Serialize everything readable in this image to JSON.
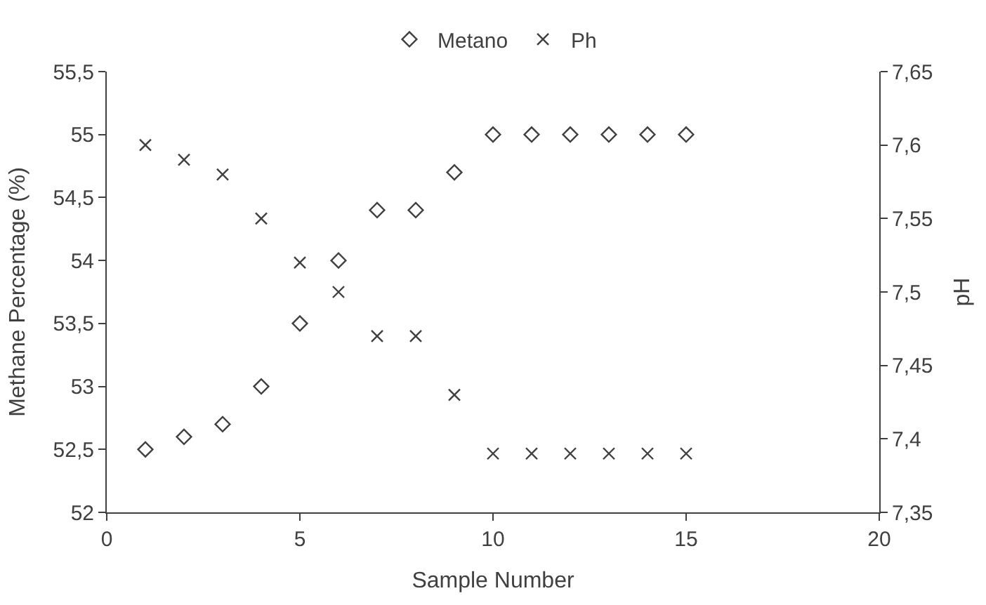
{
  "chart_data": {
    "type": "scatter",
    "xlabel": "Sample Number",
    "ylabel": "Methane Percentage (%)",
    "y2label": "pH",
    "x": [
      1,
      2,
      3,
      4,
      5,
      6,
      7,
      8,
      9,
      10,
      11,
      12,
      13,
      14,
      15
    ],
    "series": [
      {
        "name": "Metano",
        "color": "#404040",
        "marker": "diamond",
        "values": [
          52.5,
          52.6,
          52.7,
          53.0,
          53.5,
          54.0,
          54.4,
          54.4,
          54.7,
          55,
          55,
          55,
          55,
          55,
          55
        ]
      },
      {
        "name": "Ph",
        "color": "#404040",
        "marker": "cross",
        "axis": "y2",
        "values": [
          7.6,
          7.59,
          7.58,
          7.55,
          7.52,
          7.5,
          7.47,
          7.47,
          7.43,
          7.39,
          7.39,
          7.39,
          7.39,
          7.39,
          7.39
        ]
      }
    ],
    "xlim": [
      0,
      20
    ],
    "xticks": [
      0,
      5,
      10,
      15,
      20
    ],
    "ylim": [
      52,
      55.5
    ],
    "yticks": [
      52,
      {
        "value": 52.5,
        "label": "52,5"
      },
      53,
      {
        "value": 53.5,
        "label": "53,5"
      },
      54,
      {
        "value": 54.5,
        "label": "54,5"
      },
      55,
      {
        "value": 55.5,
        "label": "55,5"
      }
    ],
    "y2lim": [
      7.35,
      7.65
    ],
    "y2ticks": [
      {
        "value": 7.35,
        "label": "7,35"
      },
      {
        "value": 7.4,
        "label": "7,4"
      },
      {
        "value": 7.45,
        "label": "7,45"
      },
      {
        "value": 7.5,
        "label": "7,5"
      },
      {
        "value": 7.55,
        "label": "7,55"
      },
      {
        "value": 7.6,
        "label": "7,6"
      },
      {
        "value": 7.65,
        "label": "7,65"
      }
    ],
    "legend": "top"
  }
}
